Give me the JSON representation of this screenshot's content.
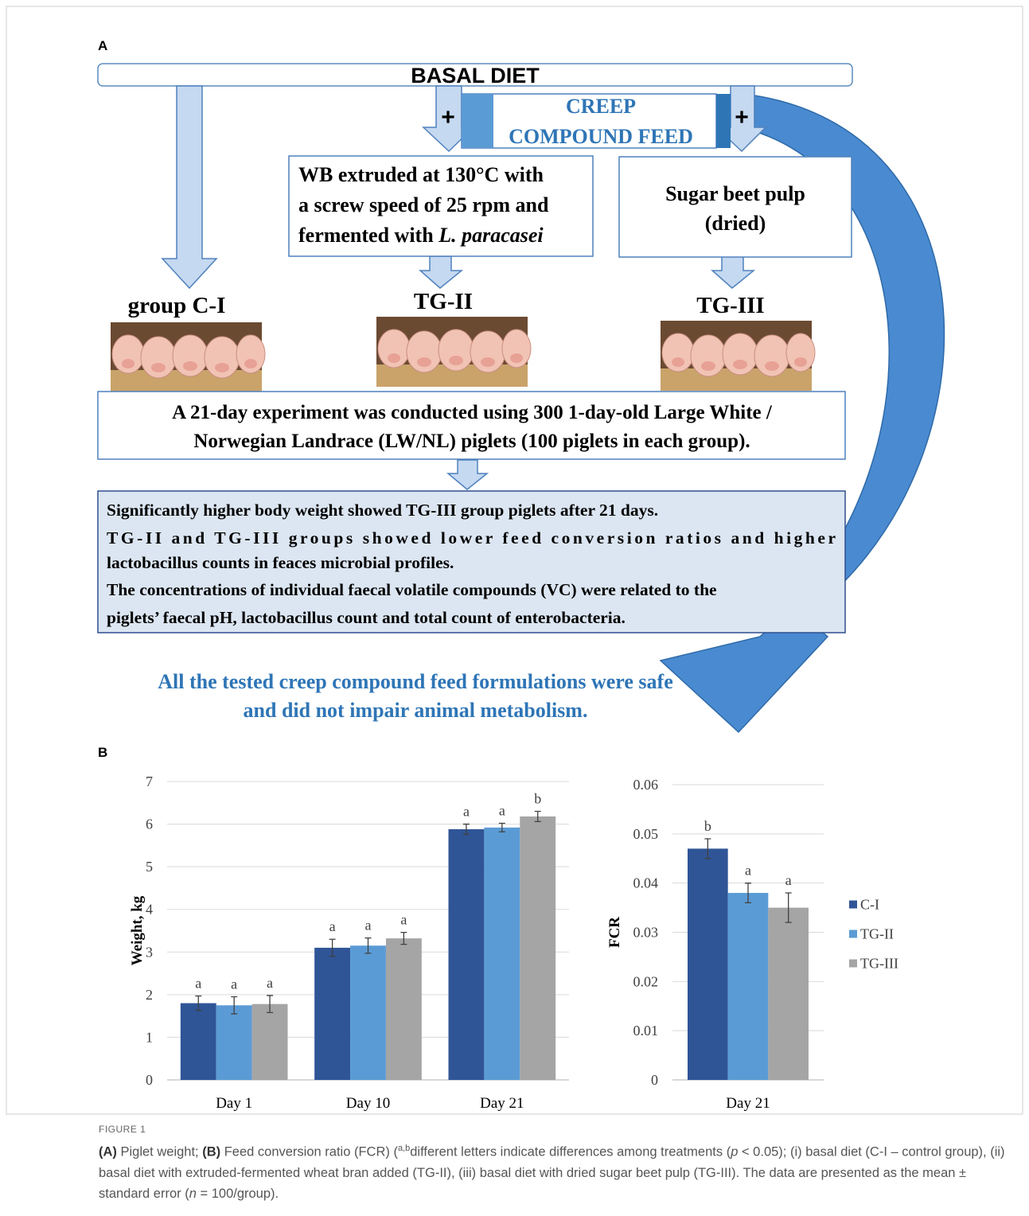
{
  "panel_a": {
    "label": "A",
    "basal": "BASAL DIET",
    "plus": "+",
    "creep": [
      "CREEP",
      "COMPOUND FEED"
    ],
    "wb": [
      "WB extruded at 130°C with",
      "a screw speed of 25 rpm and",
      "fermented with ",
      "L. paracasei"
    ],
    "sugar": [
      "Sugar beet pulp",
      "(dried)"
    ],
    "groups": [
      "group C-I",
      "TG-II",
      "TG-III"
    ],
    "experiment": [
      "A 21-day experiment was conducted using 300 1-day-old Large White /",
      "Norwegian Landrace (LW/NL) piglets (100 piglets in each group)."
    ],
    "results": [
      "Significantly higher body weight showed TG-III group piglets after 21 days.",
      "TG-II and TG-III groups showed lower feed conversion ratios and higher",
      "lactobacillus counts in feaces microbial profiles.",
      "The concentrations of individual faecal volatile compounds (VC) were related to the",
      "piglets’ faecal pH, lactobacillus count and total count of enterobacteria."
    ],
    "conclusion": [
      "All the tested creep compound feed formulations were safe",
      "and did not impair animal metabolism."
    ]
  },
  "panel_b": {
    "label": "B"
  },
  "chart_data": [
    {
      "type": "bar",
      "y_label": "Weight, kg",
      "categories": [
        "Day 1",
        "Day 10",
        "Day 21"
      ],
      "ylim": [
        0,
        7
      ],
      "yticks": [
        0,
        1,
        2,
        3,
        4,
        5,
        6,
        7
      ],
      "grid": true,
      "series": [
        {
          "color": "#2f5597",
          "values": [
            1.8,
            3.1,
            5.88
          ],
          "errors": [
            0.17,
            0.2,
            0.12
          ],
          "letters": [
            "a",
            "a",
            "a"
          ]
        },
        {
          "color": "#5b9bd5",
          "values": [
            1.75,
            3.15,
            5.92
          ],
          "errors": [
            0.2,
            0.18,
            0.1
          ],
          "letters": [
            "a",
            "a",
            "a"
          ]
        },
        {
          "color": "#a5a5a5",
          "values": [
            1.78,
            3.32,
            6.18
          ],
          "errors": [
            0.2,
            0.14,
            0.12
          ],
          "letters": [
            "a",
            "a",
            "b"
          ]
        }
      ]
    },
    {
      "type": "bar",
      "y_label": "FCR",
      "categories": [
        "Day 21"
      ],
      "ylim": [
        0,
        0.06
      ],
      "yticks": [
        0,
        0.01,
        0.02,
        0.03,
        0.04,
        0.05,
        0.06
      ],
      "grid": true,
      "legend": "right",
      "series": [
        {
          "name": "C-I",
          "color": "#2f5597",
          "values": [
            0.047
          ],
          "errors": [
            0.002
          ],
          "letters": [
            "b"
          ]
        },
        {
          "name": "TG-II",
          "color": "#5b9bd5",
          "values": [
            0.038
          ],
          "errors": [
            0.002
          ],
          "letters": [
            "a"
          ]
        },
        {
          "name": "TG-III",
          "color": "#a5a5a5",
          "values": [
            0.035
          ],
          "errors": [
            0.003
          ],
          "letters": [
            "a"
          ]
        }
      ]
    }
  ],
  "caption": {
    "title": "FIGURE 1",
    "parts": [
      "(A)",
      " Piglet weight; ",
      "(B)",
      " Feed conversion ratio (FCR) (",
      "a,b",
      "different letters indicate differences among treatments (",
      "p",
      " < 0.05); (i) basal diet (C-I – control group), (ii) basal diet with extruded-fermented wheat bran added (TG-II), (iii) basal diet with dried sugar beet pulp (TG-III). The data are presented as the mean ± standard error (",
      "n",
      " = 100/group)."
    ]
  }
}
